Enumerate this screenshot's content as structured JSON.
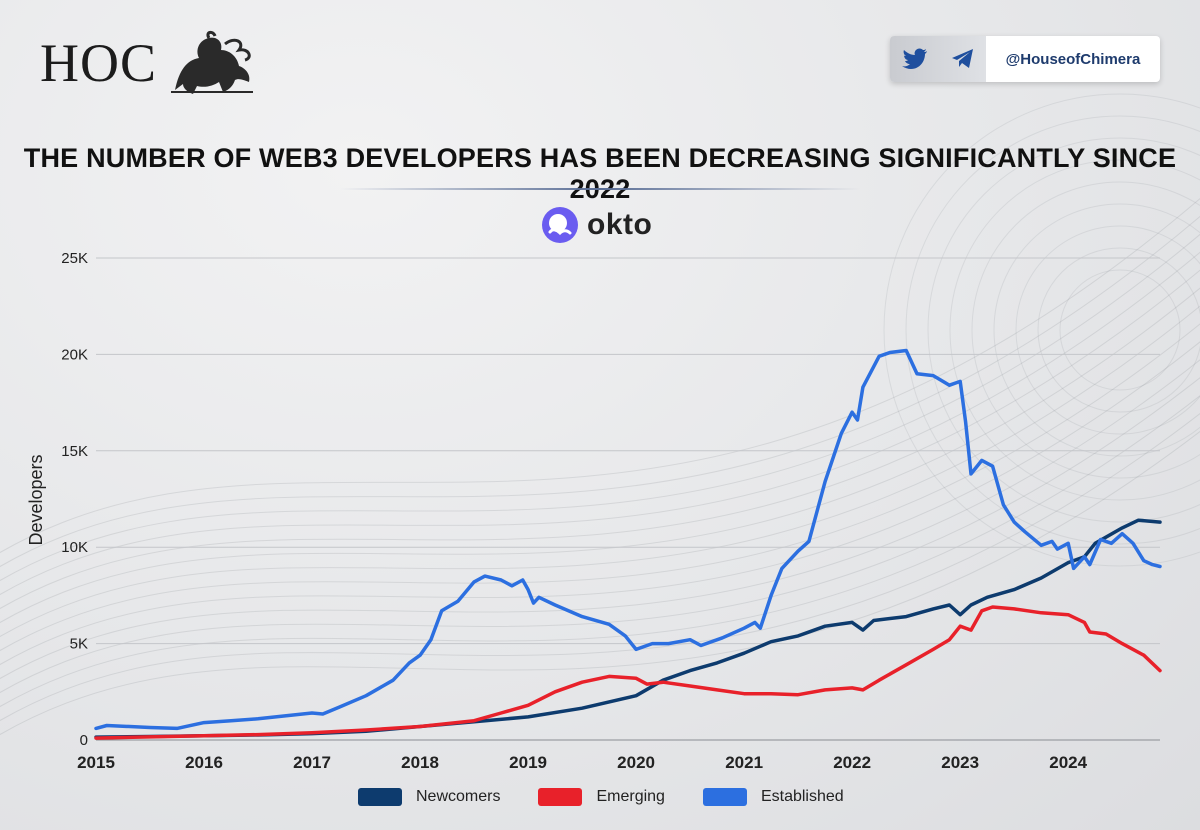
{
  "header": {
    "logo_text": "HOC",
    "social_handle": "@HouseofChimera",
    "social_icons": [
      "twitter-bird-icon",
      "telegram-plane-icon"
    ],
    "headline": "THE NUMBER OF WEB3 DEVELOPERS HAS BEEN DECREASING SIGNIFICANTLY SINCE 2022",
    "brand": "okto",
    "accent": "#5a6e96",
    "brand_icon_color": "#6a5cf0"
  },
  "chart_data": {
    "type": "line",
    "title": "THE NUMBER OF WEB3 DEVELOPERS HAS BEEN DECREASING SIGNIFICANTLY SINCE 2022",
    "xlabel": "",
    "ylabel": "Developers",
    "xlim": [
      2015,
      2024.85
    ],
    "ylim": [
      0,
      25000
    ],
    "x_ticks": [
      2015,
      2016,
      2017,
      2018,
      2019,
      2020,
      2021,
      2022,
      2023,
      2024
    ],
    "x_tick_labels": [
      "2015",
      "2016",
      "2017",
      "2018",
      "2019",
      "2020",
      "2021",
      "2022",
      "2023",
      "2024"
    ],
    "y_ticks": [
      0,
      5000,
      10000,
      15000,
      20000,
      25000
    ],
    "y_tick_labels": [
      "0",
      "5K",
      "10K",
      "15K",
      "20K",
      "25K"
    ],
    "grid": "horizontal",
    "legend_position": "bottom",
    "series": [
      {
        "name": "Newcomers",
        "color": "#0d3b6e",
        "points": [
          [
            2015,
            150
          ],
          [
            2015.5,
            180
          ],
          [
            2016,
            220
          ],
          [
            2016.5,
            260
          ],
          [
            2017,
            330
          ],
          [
            2017.5,
            450
          ],
          [
            2018,
            700
          ],
          [
            2018.5,
            950
          ],
          [
            2019,
            1200
          ],
          [
            2019.5,
            1650
          ],
          [
            2020,
            2300
          ],
          [
            2020.25,
            3100
          ],
          [
            2020.5,
            3600
          ],
          [
            2020.75,
            4000
          ],
          [
            2021,
            4500
          ],
          [
            2021.25,
            5100
          ],
          [
            2021.5,
            5400
          ],
          [
            2021.75,
            5900
          ],
          [
            2022,
            6100
          ],
          [
            2022.1,
            5700
          ],
          [
            2022.2,
            6200
          ],
          [
            2022.5,
            6400
          ],
          [
            2022.75,
            6800
          ],
          [
            2022.9,
            7000
          ],
          [
            2023,
            6500
          ],
          [
            2023.1,
            7000
          ],
          [
            2023.25,
            7400
          ],
          [
            2023.5,
            7800
          ],
          [
            2023.75,
            8400
          ],
          [
            2024,
            9200
          ],
          [
            2024.15,
            9500
          ],
          [
            2024.25,
            10200
          ],
          [
            2024.5,
            11000
          ],
          [
            2024.65,
            11400
          ],
          [
            2024.85,
            11300
          ]
        ]
      },
      {
        "name": "Emerging",
        "color": "#e8212a",
        "points": [
          [
            2015,
            100
          ],
          [
            2015.5,
            160
          ],
          [
            2016,
            220
          ],
          [
            2016.5,
            280
          ],
          [
            2017,
            380
          ],
          [
            2017.5,
            520
          ],
          [
            2018,
            700
          ],
          [
            2018.5,
            1000
          ],
          [
            2018.75,
            1400
          ],
          [
            2019,
            1800
          ],
          [
            2019.25,
            2500
          ],
          [
            2019.5,
            3000
          ],
          [
            2019.75,
            3300
          ],
          [
            2020,
            3200
          ],
          [
            2020.1,
            2900
          ],
          [
            2020.25,
            3000
          ],
          [
            2020.5,
            2800
          ],
          [
            2020.75,
            2600
          ],
          [
            2021,
            2400
          ],
          [
            2021.25,
            2400
          ],
          [
            2021.5,
            2350
          ],
          [
            2021.75,
            2600
          ],
          [
            2022,
            2700
          ],
          [
            2022.1,
            2600
          ],
          [
            2022.25,
            3100
          ],
          [
            2022.5,
            3900
          ],
          [
            2022.75,
            4700
          ],
          [
            2022.9,
            5200
          ],
          [
            2023,
            5900
          ],
          [
            2023.1,
            5700
          ],
          [
            2023.2,
            6700
          ],
          [
            2023.3,
            6900
          ],
          [
            2023.5,
            6800
          ],
          [
            2023.75,
            6600
          ],
          [
            2024,
            6500
          ],
          [
            2024.15,
            6100
          ],
          [
            2024.2,
            5600
          ],
          [
            2024.35,
            5500
          ],
          [
            2024.5,
            5000
          ],
          [
            2024.7,
            4400
          ],
          [
            2024.85,
            3600
          ]
        ]
      },
      {
        "name": "Established",
        "color": "#2c6fe0",
        "points": [
          [
            2015,
            600
          ],
          [
            2015.1,
            750
          ],
          [
            2015.5,
            650
          ],
          [
            2015.75,
            600
          ],
          [
            2016,
            900
          ],
          [
            2016.25,
            1000
          ],
          [
            2016.5,
            1100
          ],
          [
            2016.75,
            1250
          ],
          [
            2017,
            1400
          ],
          [
            2017.1,
            1350
          ],
          [
            2017.25,
            1700
          ],
          [
            2017.5,
            2300
          ],
          [
            2017.75,
            3100
          ],
          [
            2017.9,
            4000
          ],
          [
            2018,
            4400
          ],
          [
            2018.1,
            5200
          ],
          [
            2018.2,
            6700
          ],
          [
            2018.35,
            7200
          ],
          [
            2018.5,
            8200
          ],
          [
            2018.6,
            8500
          ],
          [
            2018.75,
            8300
          ],
          [
            2018.85,
            8000
          ],
          [
            2018.95,
            8300
          ],
          [
            2019,
            7800
          ],
          [
            2019.05,
            7100
          ],
          [
            2019.1,
            7400
          ],
          [
            2019.25,
            7000
          ],
          [
            2019.5,
            6400
          ],
          [
            2019.75,
            6000
          ],
          [
            2019.9,
            5400
          ],
          [
            2020,
            4700
          ],
          [
            2020.15,
            5000
          ],
          [
            2020.3,
            5000
          ],
          [
            2020.5,
            5200
          ],
          [
            2020.6,
            4900
          ],
          [
            2020.8,
            5300
          ],
          [
            2021,
            5800
          ],
          [
            2021.1,
            6100
          ],
          [
            2021.15,
            5800
          ],
          [
            2021.25,
            7500
          ],
          [
            2021.35,
            8900
          ],
          [
            2021.5,
            9800
          ],
          [
            2021.6,
            10300
          ],
          [
            2021.75,
            13400
          ],
          [
            2021.9,
            15900
          ],
          [
            2022,
            17000
          ],
          [
            2022.05,
            16600
          ],
          [
            2022.1,
            18300
          ],
          [
            2022.25,
            19900
          ],
          [
            2022.35,
            20100
          ],
          [
            2022.5,
            20200
          ],
          [
            2022.6,
            19000
          ],
          [
            2022.75,
            18900
          ],
          [
            2022.9,
            18400
          ],
          [
            2023,
            18600
          ],
          [
            2023.05,
            16500
          ],
          [
            2023.1,
            13800
          ],
          [
            2023.2,
            14500
          ],
          [
            2023.3,
            14200
          ],
          [
            2023.4,
            12200
          ],
          [
            2023.5,
            11300
          ],
          [
            2023.6,
            10800
          ],
          [
            2023.75,
            10100
          ],
          [
            2023.85,
            10300
          ],
          [
            2023.9,
            9900
          ],
          [
            2024,
            10200
          ],
          [
            2024.05,
            8900
          ],
          [
            2024.15,
            9500
          ],
          [
            2024.2,
            9100
          ],
          [
            2024.3,
            10400
          ],
          [
            2024.4,
            10200
          ],
          [
            2024.5,
            10700
          ],
          [
            2024.6,
            10200
          ],
          [
            2024.7,
            9300
          ],
          [
            2024.78,
            9100
          ],
          [
            2024.85,
            9000
          ]
        ]
      }
    ]
  }
}
